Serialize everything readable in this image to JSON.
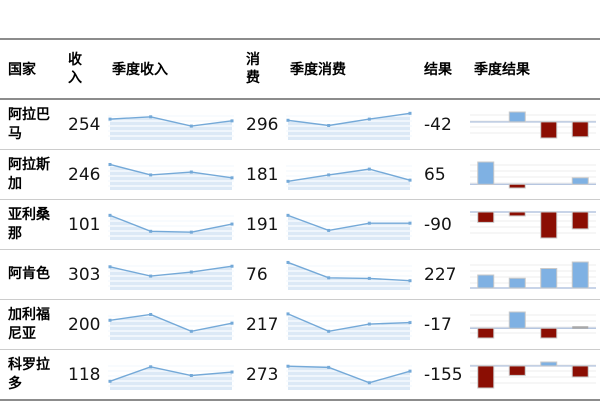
{
  "table": {
    "headers": [
      {
        "label": "国家",
        "narrow": false
      },
      {
        "label": "收入",
        "narrow": true
      },
      {
        "label": "季度收入",
        "narrow": false
      },
      {
        "label": "消费",
        "narrow": true
      },
      {
        "label": "季度消费",
        "narrow": false
      },
      {
        "label": "结果",
        "narrow": false
      },
      {
        "label": "季度结果",
        "narrow": false
      }
    ]
  },
  "chart_data": {
    "type": "table",
    "columns": [
      "国家",
      "收入",
      "季度收入",
      "消费",
      "季度消费",
      "结果",
      "季度结果"
    ],
    "sparkline_style": "area-line-with-markers, 4 quarterly points, relative heights 0-1",
    "bar_style": "win-loss quarterly bars: positive blue, negative dark red, zero gray, null missing",
    "rows": [
      {
        "state": "阿拉巴马",
        "income": 254,
        "quarterly_income": [
          0.72,
          0.8,
          0.48,
          0.66
        ],
        "spending": 296,
        "quarterly_spending": [
          0.68,
          0.5,
          0.72,
          0.92
        ],
        "result": -42,
        "quarterly_result": [
          null,
          8,
          -13,
          -12
        ]
      },
      {
        "state": "阿拉斯加",
        "income": 246,
        "quarterly_income": [
          0.88,
          0.52,
          0.62,
          0.42
        ],
        "spending": 181,
        "quarterly_spending": [
          0.3,
          0.52,
          0.72,
          0.34
        ],
        "result": 65,
        "quarterly_result": [
          12,
          -2,
          null,
          3.5
        ]
      },
      {
        "state": "亚利桑那",
        "income": 101,
        "quarterly_income": [
          0.85,
          0.3,
          0.27,
          0.55
        ],
        "spending": 191,
        "quarterly_spending": [
          0.85,
          0.33,
          0.58,
          0.58
        ],
        "result": -90,
        "quarterly_result": [
          -8,
          -3,
          -20,
          -13
        ]
      },
      {
        "state": "阿肯色",
        "income": 303,
        "quarterly_income": [
          0.8,
          0.48,
          0.62,
          0.82
        ],
        "spending": 76,
        "quarterly_spending": [
          0.95,
          0.42,
          0.4,
          0.32
        ],
        "result": 227,
        "quarterly_result": [
          8,
          6,
          12,
          16
        ]
      },
      {
        "state": "加利福尼亚",
        "income": 200,
        "quarterly_income": [
          0.68,
          0.88,
          0.3,
          0.58
        ],
        "spending": 217,
        "quarterly_spending": [
          0.9,
          0.3,
          0.55,
          0.6
        ],
        "result": -17,
        "quarterly_result": [
          -6,
          10,
          -6,
          0
        ]
      },
      {
        "state": "科罗拉多",
        "income": 118,
        "quarterly_income": [
          0.3,
          0.8,
          0.5,
          0.62
        ],
        "spending": 273,
        "quarterly_spending": [
          0.82,
          0.78,
          0.25,
          0.65
        ],
        "result": -155,
        "quarterly_result": [
          -14,
          -6,
          2.5,
          -7
        ]
      }
    ]
  },
  "colors": {
    "spark_line": "#74a9d8",
    "spark_fill": "#dce9f6",
    "spark_stripe": "#f6fafd",
    "bar_positive": "#7fb1e3",
    "bar_negative": "#8b0e03",
    "bar_zero": "#a9a9a9",
    "bar_border": "#c9c9c9",
    "axis_line": "#b6c6e0",
    "gridline": "#ededed",
    "border_heavy": "#8c8c8c",
    "border_light": "#cccccc"
  }
}
